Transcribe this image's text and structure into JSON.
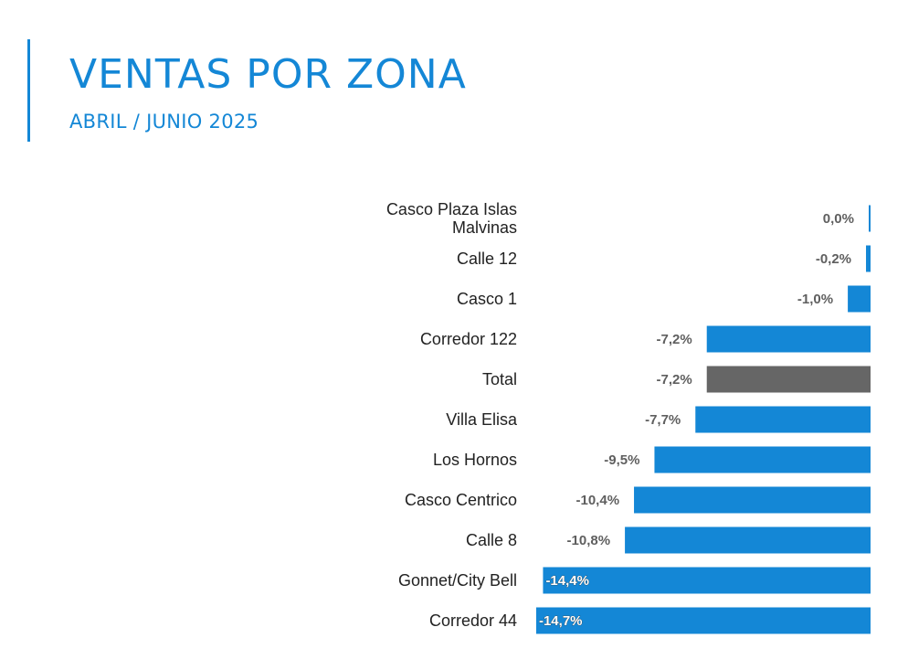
{
  "header": {
    "title": "VENTAS POR ZONA",
    "subtitle": "ABRIL / JUNIO 2025"
  },
  "colors": {
    "accent": "#1487d6",
    "bar": "#1487d6",
    "total_bar": "#666666"
  },
  "chart_data": {
    "type": "bar",
    "orientation": "horizontal",
    "title": "",
    "xlabel": "",
    "ylabel": "",
    "grid": false,
    "legend": "none",
    "xlim": [
      -15,
      0
    ],
    "categories": [
      "Casco Plaza Islas Malvinas",
      "Calle 12",
      "Casco 1",
      "Corredor 122",
      "Total",
      "Villa Elisa",
      "Los Hornos",
      "Casco Centrico",
      "Calle 8",
      "Gonnet/City Bell",
      "Corredor 44"
    ],
    "category_lines": [
      [
        "Casco Plaza Islas",
        "Malvinas"
      ],
      [
        "Calle 12"
      ],
      [
        "Casco 1"
      ],
      [
        "Corredor 122"
      ],
      [
        "Total"
      ],
      [
        "Villa Elisa"
      ],
      [
        "Los Hornos"
      ],
      [
        "Casco Centrico"
      ],
      [
        "Calle 8"
      ],
      [
        "Gonnet/City Bell"
      ],
      [
        "Corredor 44"
      ]
    ],
    "values": [
      0.0,
      -0.2,
      -1.0,
      -7.2,
      -7.2,
      -7.7,
      -9.5,
      -10.4,
      -10.8,
      -14.4,
      -14.7
    ],
    "value_labels": [
      "0,0%",
      "-0,2%",
      "-1,0%",
      "-7,2%",
      "-7,2%",
      "-7,7%",
      "-9,5%",
      "-10,4%",
      "-10,8%",
      "-14,4%",
      "-14,7%"
    ],
    "highlight": "Total"
  }
}
